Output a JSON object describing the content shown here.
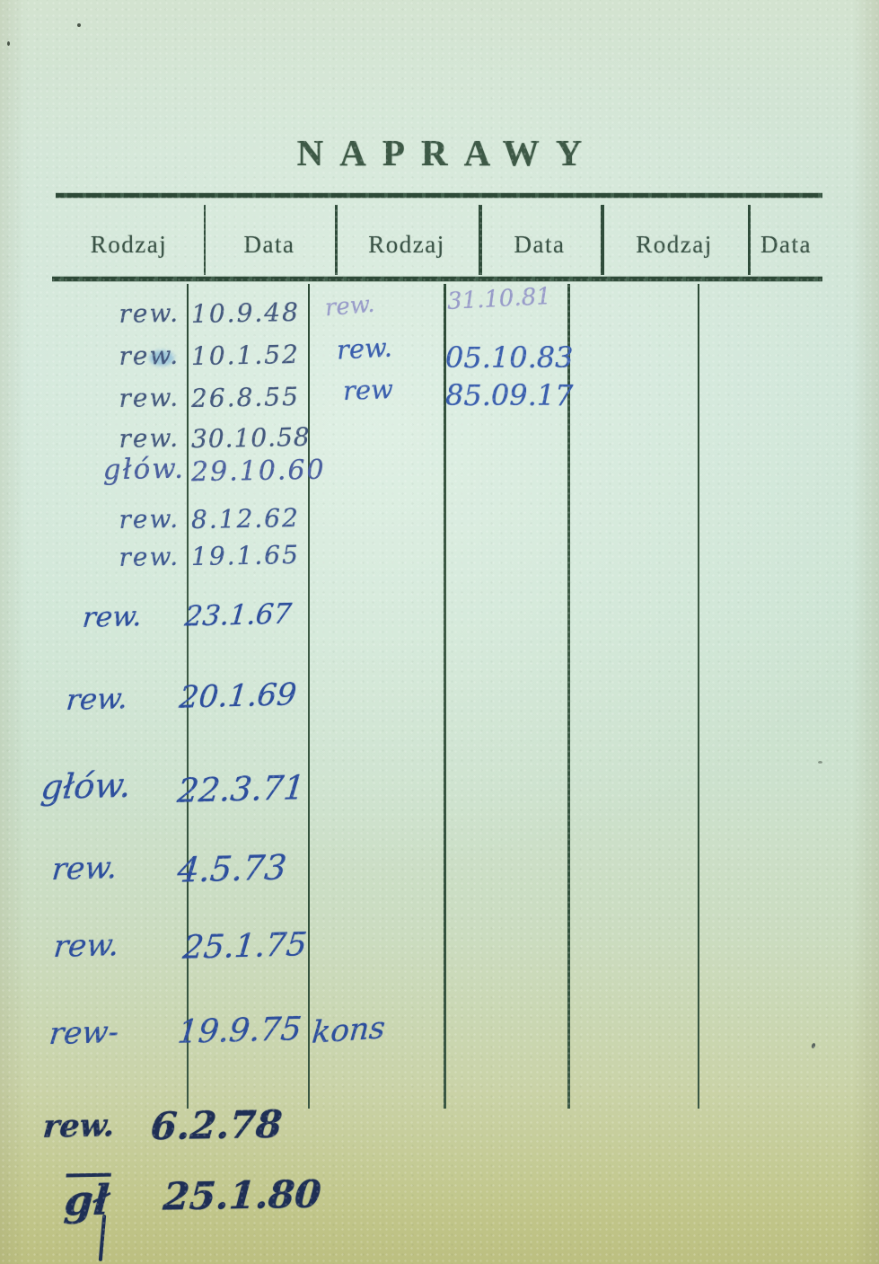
{
  "title": "NAPRAWY",
  "table": {
    "headers": [
      "Rodzaj",
      "Data",
      "Rodzaj",
      "Data",
      "Rodzaj",
      "Data"
    ]
  },
  "entries": {
    "column1": [
      {
        "kind": "rew.",
        "date": "10.9.48"
      },
      {
        "kind": "rew.",
        "date": "10.1.52"
      },
      {
        "kind": "rew.",
        "date": "26.8.55"
      },
      {
        "kind": "rew.",
        "date": "30.10.58"
      },
      {
        "kind": "głów.",
        "date": "29.10.60"
      },
      {
        "kind": "rew.",
        "date": "8.12.62"
      },
      {
        "kind": "rew.",
        "date": "19.1.65"
      },
      {
        "kind": "rew.",
        "date": "23.1.67"
      },
      {
        "kind": "rew.",
        "date": "20.1.69"
      },
      {
        "kind": "głów.",
        "date": "22.3.71"
      },
      {
        "kind": "rew.",
        "date": "4.5.73"
      },
      {
        "kind": "rew.",
        "date": "25.1.75"
      },
      {
        "kind": "rew-",
        "date": "19.9.75"
      }
    ],
    "column2": [
      {
        "kind": "rew.",
        "date": "31.10.81"
      },
      {
        "kind": "rew.",
        "date": "05.10.83"
      },
      {
        "kind": "rew",
        "date": "85.09.17"
      }
    ],
    "column2_note": "kons",
    "below_table": [
      {
        "kind": "rew.",
        "date": "6.2.78"
      },
      {
        "kind": "gł",
        "date": "25.1.80"
      }
    ]
  },
  "ink": {
    "early_blue": "#44597e",
    "cursive_blue": "#2d4f9d",
    "faint_violet": "#989cc9",
    "stamp_blue": "#3a5fae",
    "late_navy": "#1e2f55"
  },
  "paper": {
    "base_green": "#cfe3d4",
    "aged_yellow": "#c2c78c",
    "rule_dark": "#2e4a38"
  }
}
